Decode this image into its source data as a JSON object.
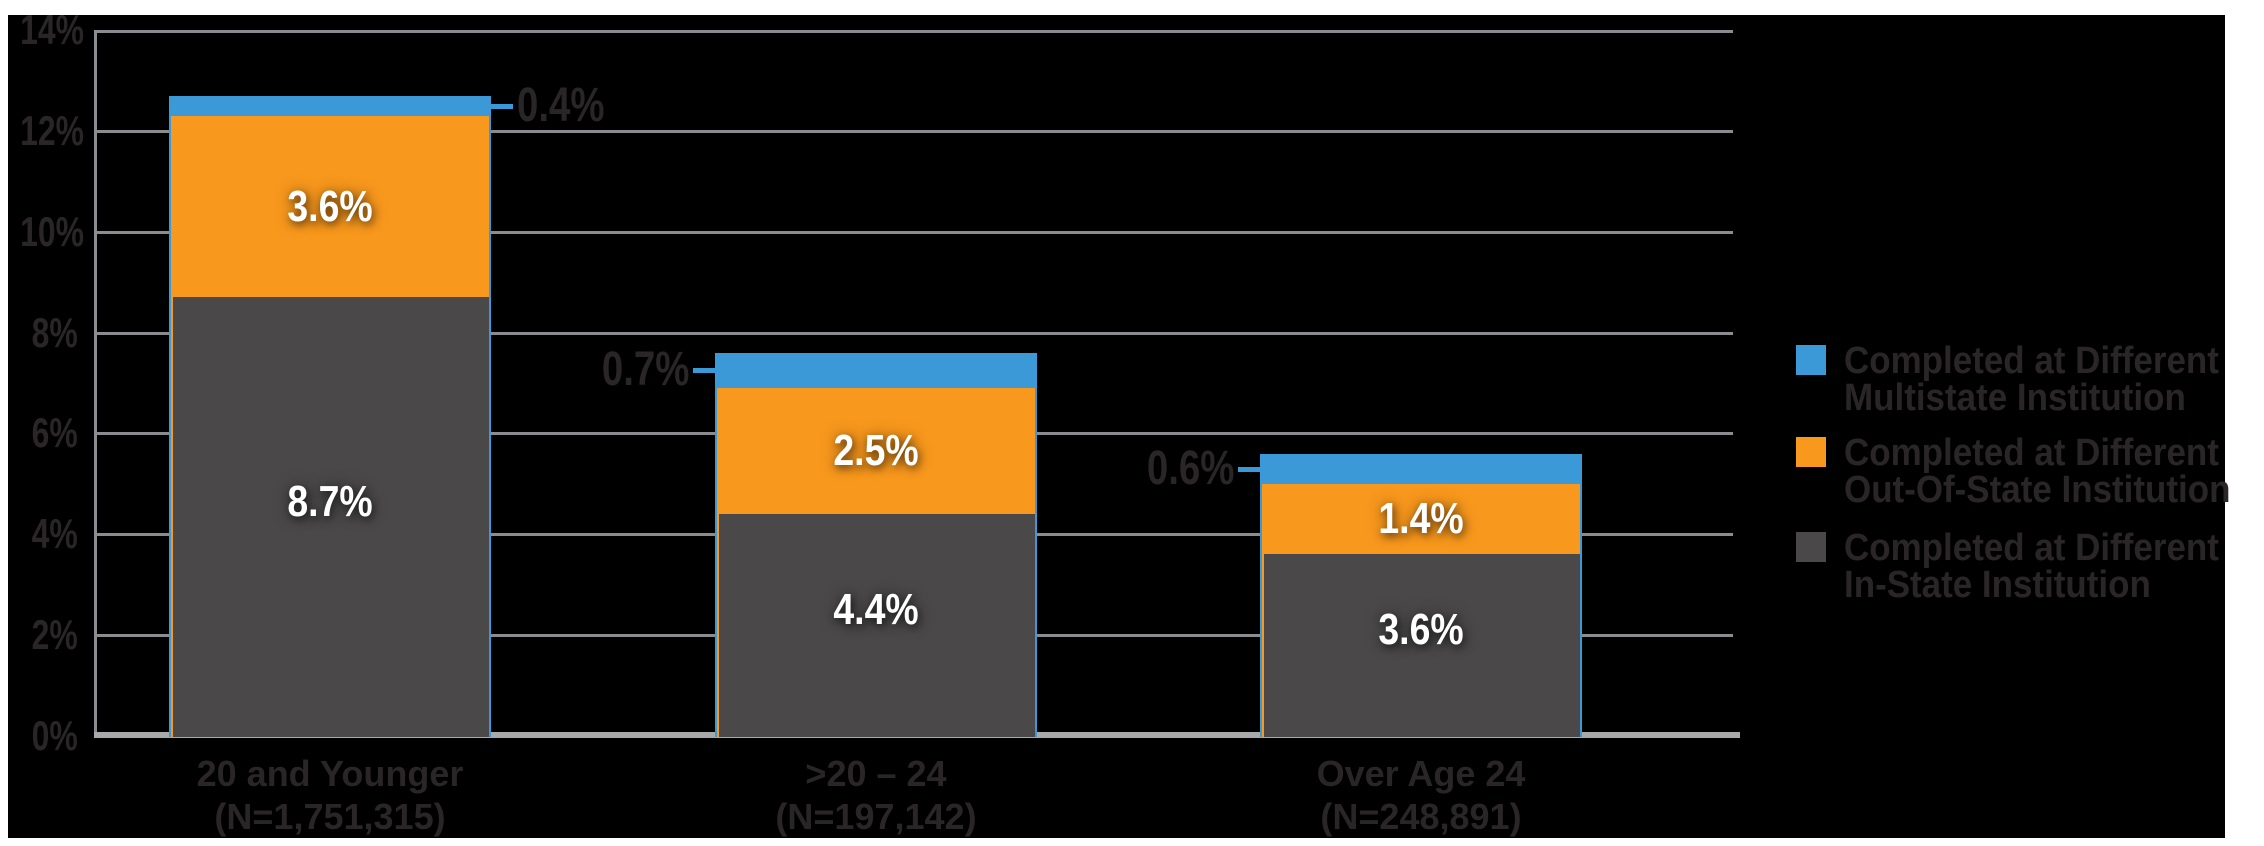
{
  "chart_data": {
    "type": "bar",
    "stacked": true,
    "orientation": "vertical",
    "grid": true,
    "background": "black",
    "legend_position": "right",
    "ylim": [
      0,
      14
    ],
    "yticks": [
      {
        "value": 14,
        "label": "14%"
      },
      {
        "value": 12,
        "label": "12%"
      },
      {
        "value": 10,
        "label": "10%"
      },
      {
        "value": 8,
        "label": "8%"
      },
      {
        "value": 6,
        "label": "6%"
      },
      {
        "value": 4,
        "label": "4%"
      },
      {
        "value": 2,
        "label": "2%"
      },
      {
        "value": 0,
        "label": "0%"
      }
    ],
    "categories": [
      {
        "label": "20 and Younger",
        "n_label": "(N=1,751,315)"
      },
      {
        "label": ">20 – 24",
        "n_label": "(N=197,142)"
      },
      {
        "label": "Over Age 24",
        "n_label": "(N=248,891)"
      }
    ],
    "series": [
      {
        "name": "Completed at Different In-State Institution",
        "key": "in_state",
        "color": "#4a4848",
        "values": [
          8.7,
          4.4,
          3.6
        ],
        "labels": [
          "8.7%",
          "4.4%",
          "3.6%"
        ],
        "label_style": "inside-white"
      },
      {
        "name": "Completed at Different Out-Of-State Institution",
        "key": "out_of_state",
        "color": "#f8981d",
        "values": [
          3.6,
          2.5,
          1.4
        ],
        "labels": [
          "3.6%",
          "2.5%",
          "1.4%"
        ],
        "label_style": "inside-white"
      },
      {
        "name": "Completed at Different Multistate Institution",
        "key": "multistate",
        "color": "#3a99d6",
        "values": [
          0.4,
          0.7,
          0.6
        ],
        "labels": [
          "0.4%",
          "0.7%",
          "0.6%"
        ],
        "label_style": "callout-outside"
      }
    ]
  },
  "legend": {
    "items": [
      {
        "color": "#3a99d6",
        "line1": "Completed at Different",
        "line2": "Multistate Institution"
      },
      {
        "color": "#f8981d",
        "line1": "Completed at Different",
        "line2": "Out-Of-State Institution"
      },
      {
        "color": "#4a4848",
        "line1": "Completed at Different",
        "line2": "In-State Institution"
      }
    ]
  },
  "colors": {
    "background": "#000000",
    "page": "#ffffff",
    "gridline": "#8a8c8f",
    "axis": "#a7a9aa",
    "text_dark": "#2a2627",
    "label_white": "#ffffff",
    "leader_line": "#3a99d6"
  }
}
